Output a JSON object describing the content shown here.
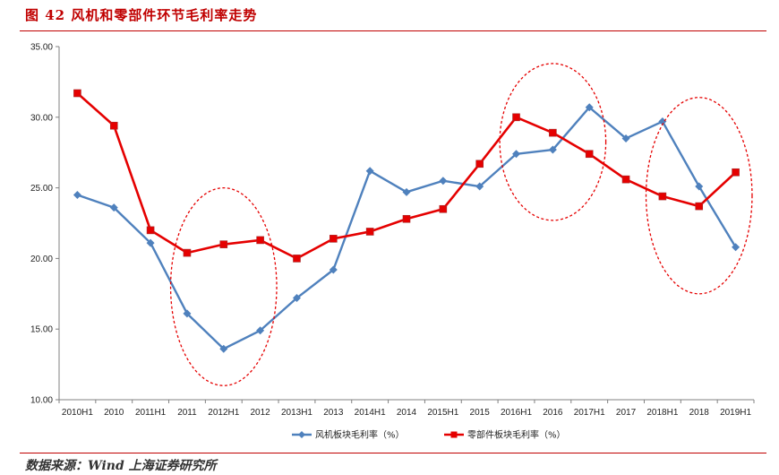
{
  "title": "图 42 风机和零部件环节毛利率走势",
  "source": "数据来源：Wind 上海证券研究所",
  "chart_data": {
    "type": "line",
    "categories": [
      "2010H1",
      "2010",
      "2011H1",
      "2011",
      "2012H1",
      "2012",
      "2013H1",
      "2013",
      "2014H1",
      "2014",
      "2015H1",
      "2015",
      "2016H1",
      "2016",
      "2017H1",
      "2017",
      "2018H1",
      "2018",
      "2019H1"
    ],
    "ylim": [
      10,
      35
    ],
    "yticks": [
      "10.00",
      "15.00",
      "20.00",
      "25.00",
      "30.00",
      "35.00"
    ],
    "grid": false,
    "legend_position": "bottom",
    "series": [
      {
        "name": "风机板块毛利率（%）",
        "color": "#4f81bd",
        "marker": "diamond",
        "values": [
          24.5,
          23.6,
          21.1,
          16.1,
          13.6,
          14.9,
          17.2,
          19.2,
          26.2,
          24.7,
          25.5,
          25.1,
          27.4,
          27.7,
          30.7,
          28.5,
          29.7,
          25.1,
          20.8
        ]
      },
      {
        "name": "零部件板块毛利率（%）",
        "color": "#e50000",
        "marker": "square",
        "values": [
          31.7,
          29.4,
          22.0,
          20.4,
          21.0,
          21.3,
          20.0,
          21.4,
          21.9,
          22.8,
          23.5,
          26.7,
          30.0,
          28.9,
          27.4,
          25.6,
          24.4,
          23.7,
          26.1
        ]
      }
    ],
    "highlight_ellipses": [
      {
        "from": "2011",
        "to": "2012",
        "y_range": [
          11,
          25
        ]
      },
      {
        "from": "2016H1",
        "to": "2017H1",
        "y_range": [
          22.7,
          33.8
        ]
      },
      {
        "from": "2018H1",
        "to": "2019H1",
        "y_range": [
          17.5,
          31.4
        ]
      }
    ]
  }
}
